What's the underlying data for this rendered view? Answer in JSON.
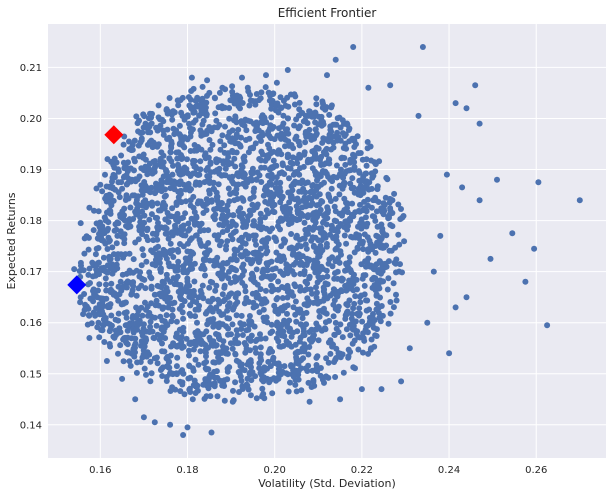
{
  "chart_data": {
    "type": "scatter",
    "title": "Efficient Frontier",
    "xlabel": "Volatility (Std. Deviation)",
    "ylabel": "Expected Returns",
    "xlim": [
      0.148,
      0.276
    ],
    "ylim": [
      0.1335,
      0.2185
    ],
    "xticks": [
      0.16,
      0.18,
      0.2,
      0.22,
      0.24,
      0.26
    ],
    "xtick_labels": [
      "0.16",
      "0.18",
      "0.20",
      "0.22",
      "0.24",
      "0.26"
    ],
    "yticks": [
      0.14,
      0.15,
      0.16,
      0.17,
      0.18,
      0.19,
      0.2,
      0.21
    ],
    "ytick_labels": [
      "0.14",
      "0.15",
      "0.16",
      "0.17",
      "0.18",
      "0.19",
      "0.20",
      "0.21"
    ],
    "grid": true,
    "colors": {
      "background": "#EAEAF2",
      "grid": "#FFFFFF",
      "points": "#4C72B0",
      "max_sharpe_marker": "#FF0000",
      "min_volatility_marker": "#0000FF"
    },
    "cloud": {
      "center_volatility": 0.188,
      "center_return": 0.1775,
      "body": [
        [
          0.1575,
          0.167
        ],
        [
          0.1595,
          0.179
        ],
        [
          0.163,
          0.19
        ],
        [
          0.17,
          0.1985
        ],
        [
          0.18,
          0.203
        ],
        [
          0.19,
          0.2045
        ],
        [
          0.2,
          0.2035
        ],
        [
          0.21,
          0.201
        ],
        [
          0.218,
          0.196
        ],
        [
          0.223,
          0.189
        ],
        [
          0.226,
          0.18
        ],
        [
          0.226,
          0.17
        ],
        [
          0.223,
          0.161
        ],
        [
          0.217,
          0.154
        ],
        [
          0.208,
          0.15
        ],
        [
          0.198,
          0.148
        ],
        [
          0.188,
          0.147
        ],
        [
          0.179,
          0.148
        ],
        [
          0.171,
          0.152
        ],
        [
          0.164,
          0.157
        ],
        [
          0.159,
          0.162
        ]
      ],
      "outliers": [
        [
          0.27,
          0.184
        ],
        [
          0.2625,
          0.1595
        ],
        [
          0.2605,
          0.1875
        ],
        [
          0.2595,
          0.1745
        ],
        [
          0.2575,
          0.168
        ],
        [
          0.2545,
          0.1775
        ],
        [
          0.251,
          0.188
        ],
        [
          0.2495,
          0.1725
        ],
        [
          0.247,
          0.199
        ],
        [
          0.246,
          0.2065
        ],
        [
          0.244,
          0.202
        ],
        [
          0.243,
          0.1865
        ],
        [
          0.2415,
          0.203
        ],
        [
          0.2395,
          0.189
        ],
        [
          0.238,
          0.177
        ],
        [
          0.234,
          0.214
        ],
        [
          0.233,
          0.2005
        ],
        [
          0.231,
          0.155
        ],
        [
          0.229,
          0.1485
        ],
        [
          0.2265,
          0.2065
        ],
        [
          0.2245,
          0.147
        ],
        [
          0.2215,
          0.206
        ],
        [
          0.218,
          0.214
        ],
        [
          0.214,
          0.2115
        ],
        [
          0.212,
          0.2085
        ],
        [
          0.208,
          0.1445
        ],
        [
          0.203,
          0.2095
        ],
        [
          0.2005,
          0.207
        ],
        [
          0.198,
          0.2085
        ],
        [
          0.1925,
          0.208
        ],
        [
          0.188,
          0.206
        ],
        [
          0.1845,
          0.2075
        ],
        [
          0.181,
          0.208
        ],
        [
          0.179,
          0.138
        ],
        [
          0.18,
          0.1395
        ],
        [
          0.1855,
          0.1385
        ],
        [
          0.176,
          0.14
        ],
        [
          0.1725,
          0.1405
        ],
        [
          0.17,
          0.1415
        ],
        [
          0.168,
          0.145
        ],
        [
          0.165,
          0.149
        ],
        [
          0.1615,
          0.1525
        ],
        [
          0.1575,
          0.157
        ],
        [
          0.1555,
          0.165
        ],
        [
          0.154,
          0.1705
        ],
        [
          0.1555,
          0.1795
        ],
        [
          0.1575,
          0.1825
        ],
        [
          0.16,
          0.187
        ],
        [
          0.1625,
          0.1915
        ],
        [
          0.215,
          0.145
        ],
        [
          0.22,
          0.147
        ],
        [
          0.235,
          0.16
        ],
        [
          0.24,
          0.154
        ],
        [
          0.2365,
          0.17
        ],
        [
          0.2415,
          0.163
        ],
        [
          0.244,
          0.165
        ],
        [
          0.247,
          0.184
        ]
      ]
    },
    "markers": [
      {
        "name": "max-sharpe",
        "shape": "diamond",
        "color": "#FF0000",
        "x": 0.1631,
        "y": 0.1968
      },
      {
        "name": "min-volatility",
        "shape": "diamond",
        "color": "#0000FF",
        "x": 0.1546,
        "y": 0.1674
      }
    ]
  }
}
